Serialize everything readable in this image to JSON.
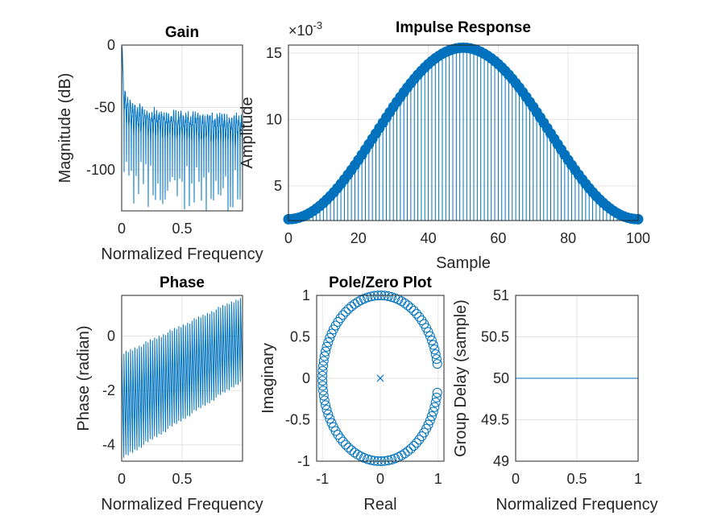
{
  "chart_data": [
    {
      "id": "gain",
      "type": "line",
      "title": "Gain",
      "xlabel": "Normalized Frequency",
      "ylabel": "Magnitude (dB)",
      "xlim": [
        0,
        1
      ],
      "ylim": [
        -133,
        0
      ],
      "xticks": [
        0,
        0.5
      ],
      "yticks": [
        0,
        -50,
        -100
      ],
      "xtick_labels": [
        "0",
        "0.5"
      ],
      "ytick_labels": [
        "0",
        "-50",
        "-100"
      ],
      "grid": true,
      "series_color": "#0072BD",
      "description_points": {
        "x": [
          0,
          0.005,
          0.01,
          0.02,
          0.03,
          0.05,
          0.1,
          0.2,
          0.3,
          0.5,
          0.7,
          0.9,
          1.0
        ],
        "upper_envelope_db": [
          0,
          -3,
          -20,
          -30,
          -35,
          -40,
          -45,
          -48,
          -50,
          -52,
          -53,
          -54,
          -54
        ]
      }
    },
    {
      "id": "impulse",
      "type": "stem",
      "title": "Impulse Response",
      "xlabel": "Sample",
      "ylabel": "Amplitude",
      "exponent_label": "×10-3",
      "xlim": [
        0,
        100
      ],
      "ylim": [
        2.4,
        15.6
      ],
      "xticks": [
        0,
        20,
        40,
        60,
        80,
        100
      ],
      "yticks": [
        5,
        10,
        15
      ],
      "xtick_labels": [
        "0",
        "20",
        "40",
        "60",
        "80",
        "100"
      ],
      "ytick_labels": [
        "5",
        "10",
        "15"
      ],
      "grid": true,
      "series_color": "#0072BD",
      "n_samples": 101,
      "min_value": 2.5,
      "peak_value": 15.4,
      "peak_sample": 50
    },
    {
      "id": "phase",
      "type": "line",
      "title": "Phase",
      "xlabel": "Normalized Frequency",
      "ylabel": "Phase (radian)",
      "xlim": [
        0,
        1
      ],
      "ylim": [
        -4.6,
        1.5
      ],
      "xticks": [
        0,
        0.5
      ],
      "yticks": [
        0,
        -2,
        -4
      ],
      "xtick_labels": [
        "0",
        "0.5"
      ],
      "ytick_labels": [
        "0",
        "-2",
        "-4"
      ],
      "grid": true,
      "series_color": "#0072BD"
    },
    {
      "id": "polezero",
      "type": "scatter",
      "title": "Pole/Zero Plot",
      "xlabel": "Real",
      "ylabel": "Imaginary",
      "xlim": [
        -1.1,
        1.1
      ],
      "ylim": [
        -1,
        1
      ],
      "xticks": [
        -1,
        0,
        1
      ],
      "yticks": [
        1,
        0.5,
        0,
        -0.5,
        -1
      ],
      "xtick_labels": [
        "-1",
        "0",
        "1"
      ],
      "ytick_labels": [
        "1",
        "0.5",
        "0",
        "-0.5",
        "-1"
      ],
      "grid": true,
      "series_color": "#0072BD",
      "poles": [
        [
          0,
          0
        ]
      ],
      "zeros_on_unit_circle": 100,
      "zero_gap_near_real_axis_deg": 10
    },
    {
      "id": "groupdelay",
      "type": "line",
      "title": "",
      "xlabel": "Normalized Frequency",
      "ylabel": "Group Delay (sample)",
      "xlim": [
        0,
        1
      ],
      "ylim": [
        49,
        51
      ],
      "xticks": [
        0,
        0.5,
        1
      ],
      "yticks": [
        51,
        50.5,
        50,
        49.5,
        49
      ],
      "xtick_labels": [
        "0",
        "0.5",
        "1"
      ],
      "ytick_labels": [
        "51",
        "50.5",
        "50",
        "49.5",
        "49"
      ],
      "grid": true,
      "series_color": "#0072BD",
      "x": [
        0,
        1
      ],
      "y": [
        50,
        50
      ]
    }
  ]
}
